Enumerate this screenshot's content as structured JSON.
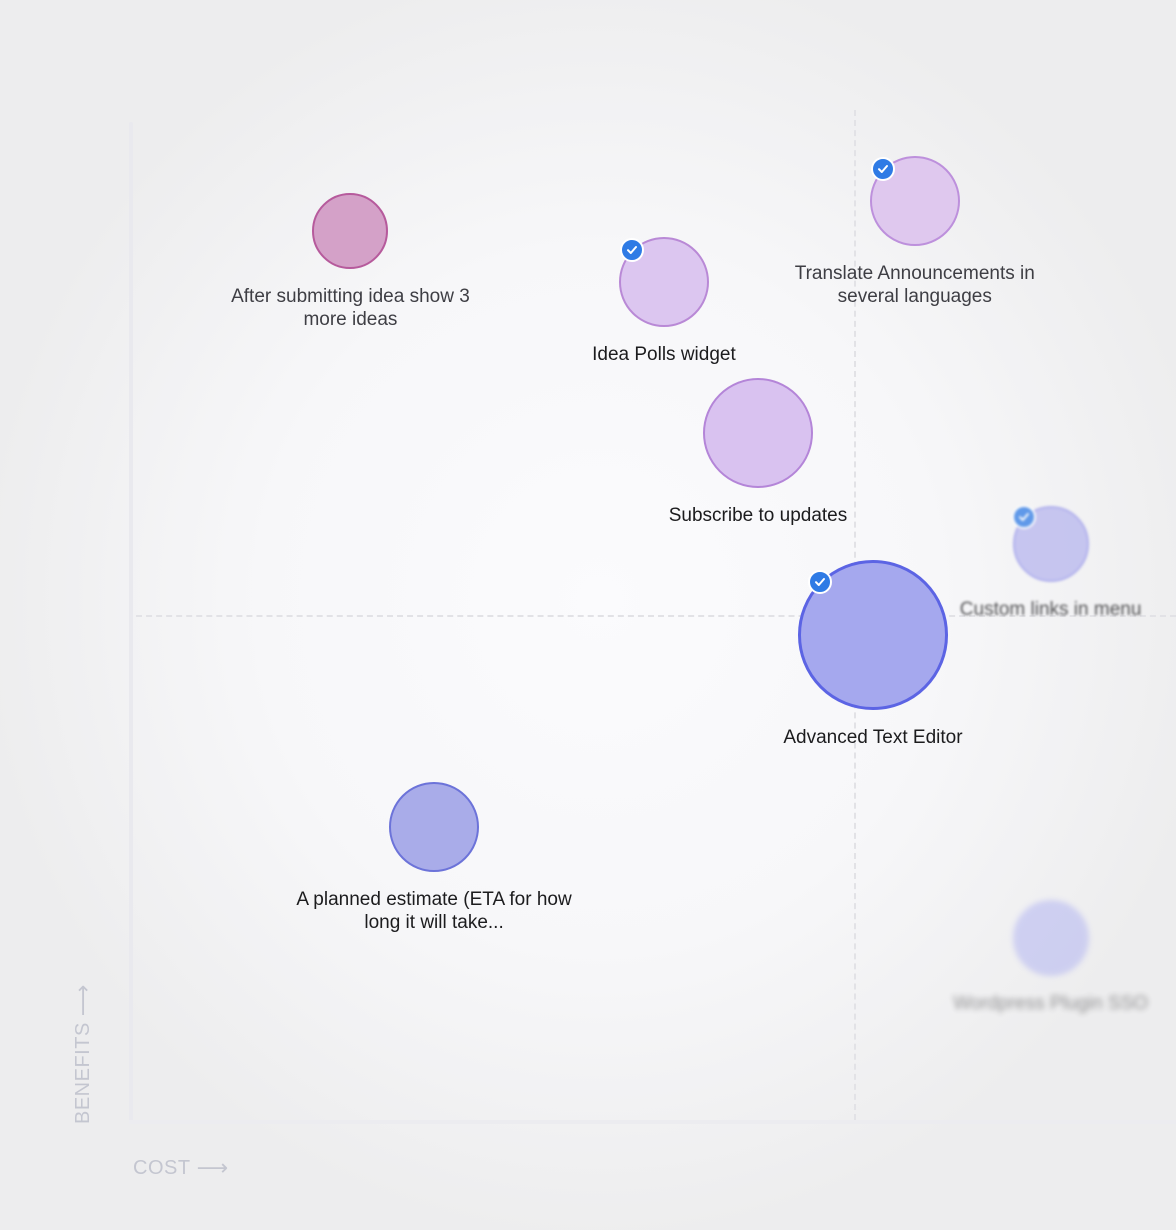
{
  "chart_data": {
    "type": "scatter",
    "title": "",
    "xlabel": "COST",
    "ylabel": "BENEFITS",
    "xlim": [
      0,
      100
    ],
    "ylim": [
      0,
      100
    ],
    "grid": false,
    "quadrant_dividers": {
      "x": 69,
      "y": 50
    },
    "points": [
      {
        "label": "After submitting idea show 3 more ideas",
        "x": 21,
        "y": 88,
        "size": 1,
        "color": "#d4a1c8",
        "stroke": "#b65a9c",
        "checked": false
      },
      {
        "label": "Idea Polls widget",
        "x": 51,
        "y": 83,
        "size": 2,
        "color": "#dcc6f0",
        "stroke": "#b989d6",
        "checked": true
      },
      {
        "label": "Translate Announcements in several languages",
        "x": 75,
        "y": 91,
        "size": 2,
        "color": "#dfc8ee",
        "stroke": "#bd90dc",
        "checked": true
      },
      {
        "label": "Subscribe to updates",
        "x": 60,
        "y": 68,
        "size": 4,
        "color": "#d9c2f0",
        "stroke": "#b485d8",
        "checked": false
      },
      {
        "label": "Custom links in menu",
        "x": 88,
        "y": 57,
        "size": 1,
        "color": "#b7b6ee",
        "stroke": "#9c9cea",
        "checked": true
      },
      {
        "label": "Advanced Text Editor",
        "x": 71,
        "y": 48,
        "size": 10,
        "color": "#a5a8ee",
        "stroke": "#5c64e4",
        "checked": true
      },
      {
        "label": "A planned estimate (ETA for how long it will take...",
        "x": 29,
        "y": 29,
        "size": 2,
        "color": "#a9ace9",
        "stroke": "#6c73d9",
        "checked": false
      },
      {
        "label": "Wordpress Plugin SSO",
        "x": 88,
        "y": 18,
        "size": 1,
        "color": "#a6a9f1",
        "stroke": "#a6a9f1",
        "checked": false
      }
    ]
  },
  "axes": {
    "x_label": "COST",
    "y_label": "BENEFITS",
    "arrow": "⟶"
  },
  "colors": {
    "check_badge": "#2f7be5",
    "axis_text": "#c4c6d0"
  },
  "icons": {
    "check": "check-icon"
  }
}
